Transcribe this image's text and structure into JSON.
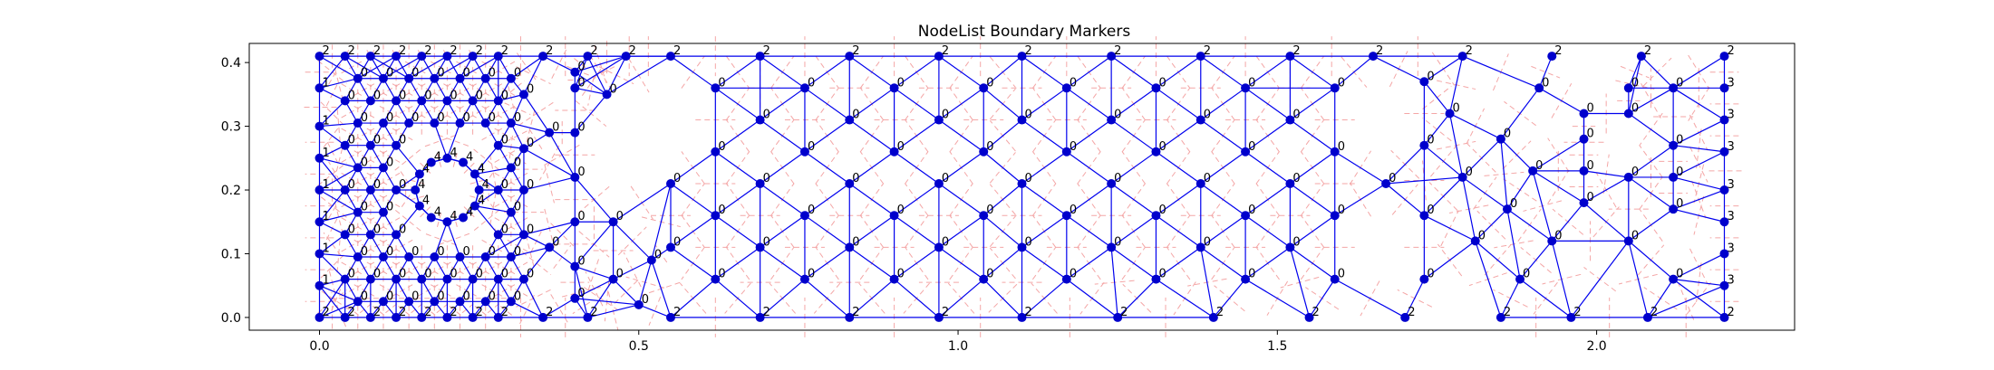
{
  "chart_data": {
    "type": "scatter",
    "title": "NodeList Boundary Markers",
    "xlabel": "",
    "ylabel": "",
    "xlim": [
      -0.11,
      2.31
    ],
    "ylim": [
      -0.02,
      0.43
    ],
    "x_ticks": [
      0.0,
      0.5,
      1.0,
      1.5,
      2.0
    ],
    "x_tick_labels": [
      "0.0",
      "0.5",
      "1.0",
      "1.5",
      "2.0"
    ],
    "y_ticks": [
      0.0,
      0.1,
      0.2,
      0.3,
      0.4
    ],
    "y_tick_labels": [
      "0.0",
      "0.1",
      "0.2",
      "0.3",
      "0.4"
    ],
    "grid": false,
    "legend": "none",
    "colors": {
      "nodes": "#0000cc",
      "edges": "#0000ee",
      "dual_edges": "#f4a6a6"
    },
    "cylinder": {
      "center": [
        0.2,
        0.2
      ],
      "radius": 0.05,
      "marker": "4"
    },
    "boundary_nodes": {
      "bottom": {
        "y": 0.0,
        "marker": "2",
        "x": [
          0.0,
          0.04,
          0.08,
          0.12,
          0.16,
          0.2,
          0.24,
          0.28,
          0.35,
          0.42,
          0.55,
          0.69,
          0.83,
          0.97,
          1.1,
          1.25,
          1.4,
          1.55,
          1.7,
          1.85,
          1.96,
          2.08,
          2.2
        ]
      },
      "top": {
        "y": 0.41,
        "marker": "2",
        "x": [
          0.0,
          0.04,
          0.08,
          0.12,
          0.16,
          0.2,
          0.24,
          0.28,
          0.35,
          0.42,
          0.48,
          0.55,
          0.69,
          0.83,
          0.97,
          1.1,
          1.24,
          1.38,
          1.52,
          1.65,
          1.79,
          1.93,
          2.07,
          2.2
        ]
      },
      "left": {
        "x": 0.0,
        "marker": "1",
        "y": [
          0.05,
          0.1,
          0.15,
          0.2,
          0.25,
          0.3,
          0.36
        ]
      },
      "right": {
        "x": 2.2,
        "marker": "3",
        "y": [
          0.05,
          0.1,
          0.15,
          0.2,
          0.26,
          0.31,
          0.36
        ]
      }
    },
    "interior_nodes": {
      "marker": "0",
      "points": [
        [
          0.06,
          0.375
        ],
        [
          0.1,
          0.375
        ],
        [
          0.14,
          0.375
        ],
        [
          0.18,
          0.375
        ],
        [
          0.22,
          0.375
        ],
        [
          0.26,
          0.375
        ],
        [
          0.3,
          0.375
        ],
        [
          0.4,
          0.385
        ],
        [
          0.04,
          0.34
        ],
        [
          0.08,
          0.34
        ],
        [
          0.12,
          0.34
        ],
        [
          0.16,
          0.34
        ],
        [
          0.2,
          0.34
        ],
        [
          0.24,
          0.34
        ],
        [
          0.28,
          0.34
        ],
        [
          0.32,
          0.35
        ],
        [
          0.45,
          0.35
        ],
        [
          0.06,
          0.305
        ],
        [
          0.1,
          0.305
        ],
        [
          0.14,
          0.305
        ],
        [
          0.18,
          0.305
        ],
        [
          0.22,
          0.305
        ],
        [
          0.26,
          0.305
        ],
        [
          0.3,
          0.305
        ],
        [
          0.36,
          0.29
        ],
        [
          0.04,
          0.27
        ],
        [
          0.08,
          0.27
        ],
        [
          0.12,
          0.27
        ],
        [
          0.28,
          0.27
        ],
        [
          0.32,
          0.265
        ],
        [
          0.06,
          0.235
        ],
        [
          0.1,
          0.235
        ],
        [
          0.3,
          0.235
        ],
        [
          0.04,
          0.2
        ],
        [
          0.08,
          0.2
        ],
        [
          0.12,
          0.2
        ],
        [
          0.28,
          0.2
        ],
        [
          0.32,
          0.2
        ],
        [
          0.06,
          0.165
        ],
        [
          0.1,
          0.165
        ],
        [
          0.3,
          0.165
        ],
        [
          0.04,
          0.13
        ],
        [
          0.08,
          0.13
        ],
        [
          0.12,
          0.13
        ],
        [
          0.28,
          0.13
        ],
        [
          0.32,
          0.13
        ],
        [
          0.36,
          0.11
        ],
        [
          0.06,
          0.095
        ],
        [
          0.1,
          0.095
        ],
        [
          0.14,
          0.095
        ],
        [
          0.18,
          0.095
        ],
        [
          0.22,
          0.095
        ],
        [
          0.26,
          0.095
        ],
        [
          0.3,
          0.095
        ],
        [
          0.04,
          0.06
        ],
        [
          0.08,
          0.06
        ],
        [
          0.12,
          0.06
        ],
        [
          0.16,
          0.06
        ],
        [
          0.2,
          0.06
        ],
        [
          0.24,
          0.06
        ],
        [
          0.28,
          0.06
        ],
        [
          0.32,
          0.06
        ],
        [
          0.06,
          0.025
        ],
        [
          0.1,
          0.025
        ],
        [
          0.14,
          0.025
        ],
        [
          0.18,
          0.025
        ],
        [
          0.22,
          0.025
        ],
        [
          0.26,
          0.025
        ],
        [
          0.3,
          0.025
        ],
        [
          0.4,
          0.36
        ],
        [
          0.4,
          0.29
        ],
        [
          0.4,
          0.22
        ],
        [
          0.4,
          0.15
        ],
        [
          0.4,
          0.08
        ],
        [
          0.4,
          0.03
        ],
        [
          0.46,
          0.15
        ],
        [
          0.46,
          0.06
        ],
        [
          0.5,
          0.02
        ],
        [
          0.52,
          0.09
        ],
        [
          0.55,
          0.21
        ],
        [
          0.55,
          0.11
        ],
        [
          0.62,
          0.36
        ],
        [
          0.62,
          0.26
        ],
        [
          0.62,
          0.16
        ],
        [
          0.62,
          0.06
        ],
        [
          0.69,
          0.31
        ],
        [
          0.69,
          0.21
        ],
        [
          0.69,
          0.11
        ],
        [
          0.76,
          0.36
        ],
        [
          0.76,
          0.26
        ],
        [
          0.76,
          0.16
        ],
        [
          0.76,
          0.06
        ],
        [
          0.83,
          0.31
        ],
        [
          0.83,
          0.21
        ],
        [
          0.83,
          0.11
        ],
        [
          0.9,
          0.36
        ],
        [
          0.9,
          0.26
        ],
        [
          0.9,
          0.16
        ],
        [
          0.9,
          0.06
        ],
        [
          0.97,
          0.31
        ],
        [
          0.97,
          0.21
        ],
        [
          0.97,
          0.11
        ],
        [
          1.04,
          0.36
        ],
        [
          1.04,
          0.26
        ],
        [
          1.04,
          0.16
        ],
        [
          1.04,
          0.06
        ],
        [
          1.1,
          0.31
        ],
        [
          1.1,
          0.21
        ],
        [
          1.1,
          0.11
        ],
        [
          1.17,
          0.36
        ],
        [
          1.17,
          0.26
        ],
        [
          1.17,
          0.16
        ],
        [
          1.17,
          0.06
        ],
        [
          1.24,
          0.31
        ],
        [
          1.24,
          0.21
        ],
        [
          1.24,
          0.11
        ],
        [
          1.31,
          0.36
        ],
        [
          1.31,
          0.26
        ],
        [
          1.31,
          0.16
        ],
        [
          1.31,
          0.06
        ],
        [
          1.38,
          0.31
        ],
        [
          1.38,
          0.21
        ],
        [
          1.38,
          0.11
        ],
        [
          1.45,
          0.36
        ],
        [
          1.45,
          0.26
        ],
        [
          1.45,
          0.16
        ],
        [
          1.45,
          0.06
        ],
        [
          1.52,
          0.31
        ],
        [
          1.52,
          0.21
        ],
        [
          1.52,
          0.11
        ],
        [
          1.59,
          0.36
        ],
        [
          1.59,
          0.26
        ],
        [
          1.59,
          0.16
        ],
        [
          1.59,
          0.06
        ],
        [
          1.67,
          0.21
        ],
        [
          1.73,
          0.37
        ],
        [
          1.73,
          0.27
        ],
        [
          1.73,
          0.16
        ],
        [
          1.73,
          0.06
        ],
        [
          1.77,
          0.32
        ],
        [
          1.79,
          0.22
        ],
        [
          1.81,
          0.12
        ],
        [
          1.85,
          0.28
        ],
        [
          1.86,
          0.17
        ],
        [
          1.88,
          0.06
        ],
        [
          1.91,
          0.36
        ],
        [
          1.9,
          0.23
        ],
        [
          1.93,
          0.12
        ],
        [
          1.98,
          0.32
        ],
        [
          1.98,
          0.28
        ],
        [
          1.98,
          0.23
        ],
        [
          1.98,
          0.18
        ],
        [
          2.05,
          0.36
        ],
        [
          2.05,
          0.32
        ],
        [
          2.05,
          0.22
        ],
        [
          2.05,
          0.12
        ],
        [
          2.12,
          0.36
        ],
        [
          2.12,
          0.27
        ],
        [
          2.12,
          0.22
        ],
        [
          2.12,
          0.17
        ],
        [
          2.12,
          0.06
        ]
      ]
    }
  }
}
